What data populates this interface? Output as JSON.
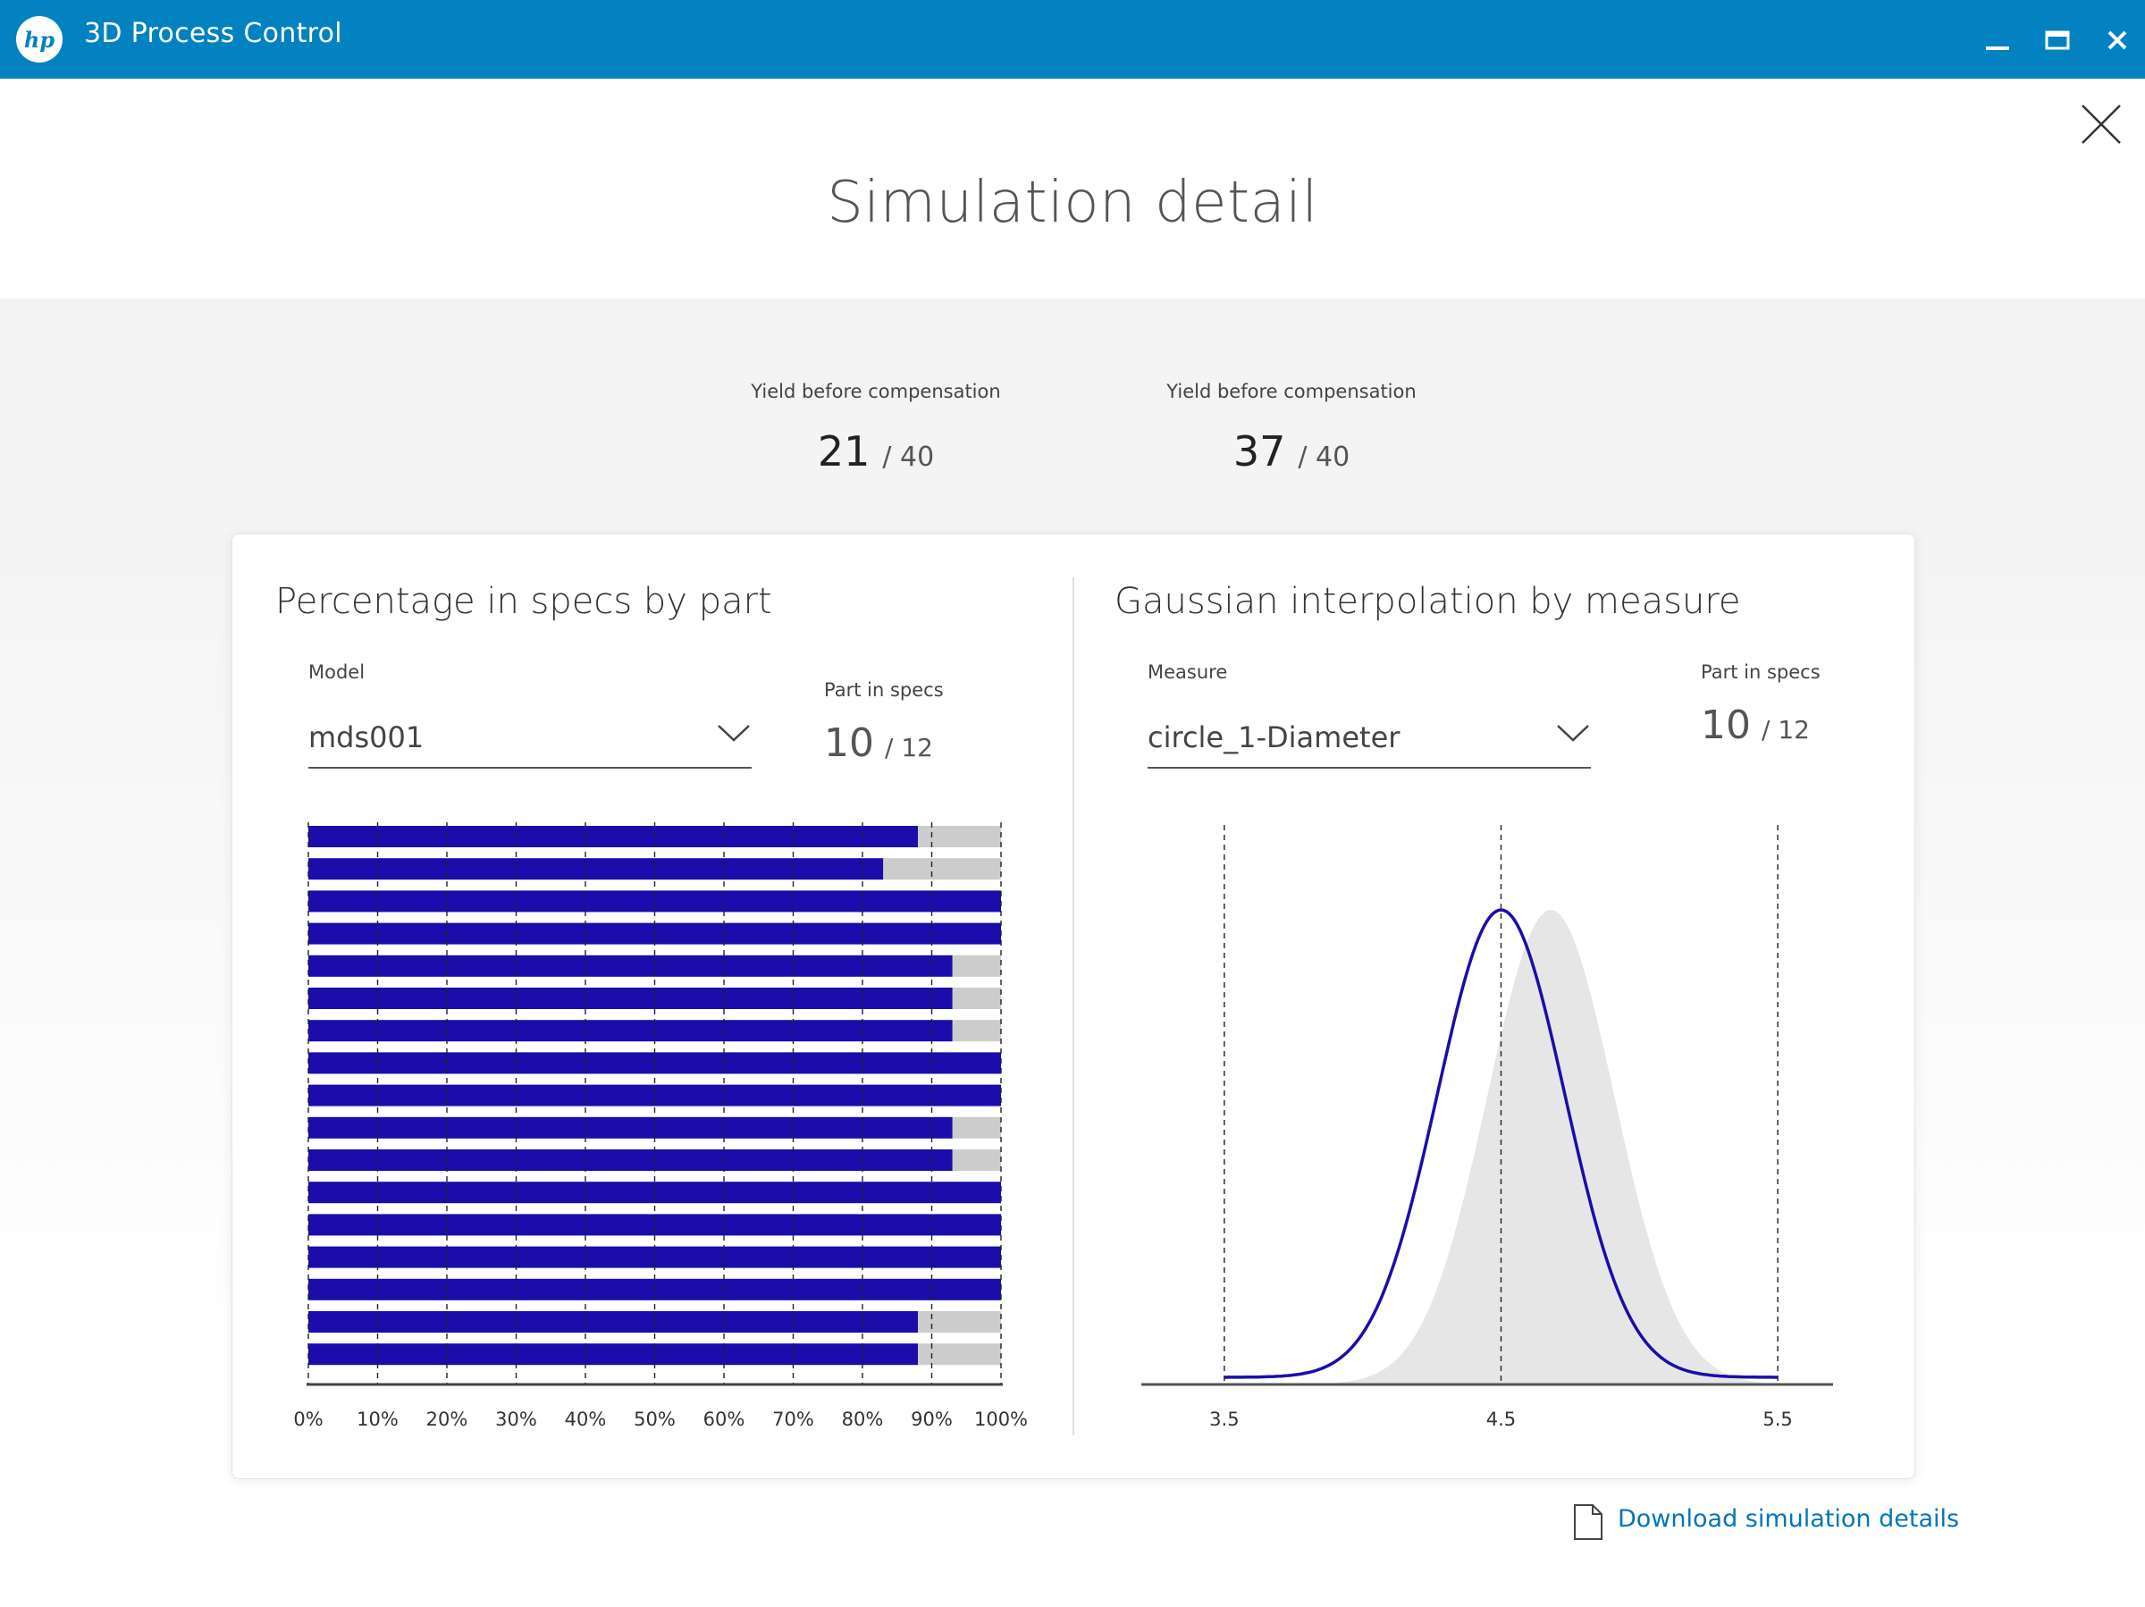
{
  "window": {
    "app_title": "3D Process Control",
    "logo_text": "hp",
    "controls": [
      "minimize-icon",
      "maximize-icon",
      "close-icon"
    ],
    "accent_color": "#0282c1"
  },
  "page": {
    "title": "Simulation detail"
  },
  "yields": [
    {
      "label": "Yield before compensation",
      "value": "21",
      "denominator": "/ 40"
    },
    {
      "label": "Yield before compensation",
      "value": "37",
      "denominator": "/ 40"
    }
  ],
  "left_panel": {
    "title": "Percentage in specs by part",
    "select_label": "Model",
    "select_value": "mds001",
    "spec_label": "Part in specs",
    "spec_value": "10",
    "spec_den": "/ 12"
  },
  "right_panel": {
    "title": "Gaussian interpolation by measure",
    "select_label": "Measure",
    "select_value": "circle_1-Diameter",
    "spec_label": "Part in specs",
    "spec_value": "10",
    "spec_den": "/ 12"
  },
  "download": {
    "label": "Download simulation details",
    "icon": "document-icon"
  },
  "chart_data": [
    {
      "type": "bar",
      "orientation": "horizontal",
      "stacked": true,
      "series": [
        {
          "values": [
            88,
            83,
            100,
            100,
            93,
            93,
            93,
            100,
            100,
            93,
            93,
            100,
            100,
            100,
            100,
            88,
            88
          ],
          "color": "#1a0dab"
        },
        {
          "values": [
            12,
            17,
            0,
            0,
            7,
            7,
            7,
            0,
            0,
            7,
            7,
            0,
            0,
            0,
            0,
            12,
            12
          ],
          "color": "#cccccc"
        }
      ],
      "x_ticks": [
        "0%",
        "10%",
        "20%",
        "30%",
        "40%",
        "50%",
        "60%",
        "70%",
        "80%",
        "90%",
        "100%"
      ],
      "xlim": [
        0,
        100
      ],
      "grid": "vertical dashed"
    },
    {
      "type": "area",
      "x_ticks": [
        "3.5",
        "4.5",
        "5.5"
      ],
      "xlim": [
        3.2,
        5.7
      ],
      "reference_lines": [
        3.5,
        4.5,
        5.5
      ],
      "series": [
        {
          "kind": "line",
          "color": "#1a0dab",
          "mean": 4.5,
          "sd": 0.23,
          "x_start": 3.5
        },
        {
          "kind": "filled",
          "color": "#e6e6e6",
          "mean": 4.68,
          "sd": 0.23
        }
      ]
    }
  ]
}
